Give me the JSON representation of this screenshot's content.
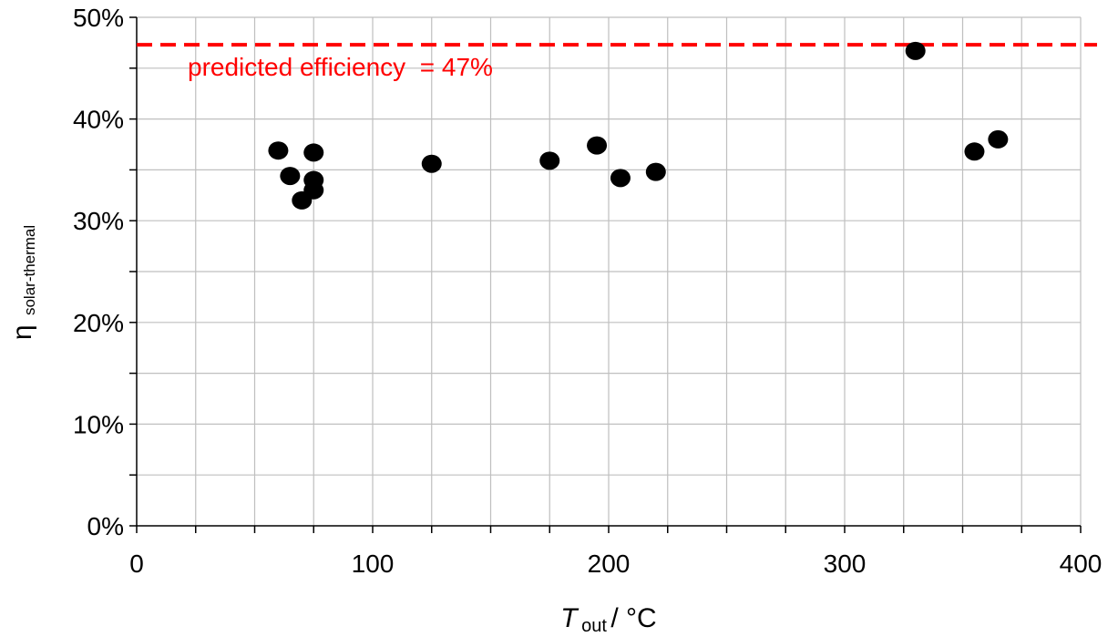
{
  "chart_data": {
    "type": "scatter",
    "title": "",
    "xlabel": {
      "main": "T",
      "subscript": "out",
      "unit": " / °C"
    },
    "ylabel": {
      "main": "η",
      "subscript": "solar-thermal"
    },
    "xlim": [
      0,
      400
    ],
    "ylim": [
      0,
      50
    ],
    "x_ticks": [
      0,
      100,
      200,
      300,
      400
    ],
    "x_gridlines": [
      0,
      25,
      50,
      75,
      100,
      125,
      150,
      175,
      200,
      225,
      250,
      275,
      300,
      325,
      350,
      375,
      400
    ],
    "y_ticks": [
      0,
      10,
      20,
      30,
      40,
      50
    ],
    "y_tick_labels": [
      "0%",
      "10%",
      "20%",
      "30%",
      "40%",
      "50%"
    ],
    "y_gridlines": [
      0,
      5,
      10,
      15,
      20,
      25,
      30,
      35,
      40,
      45,
      50
    ],
    "x_tick_labels": [
      "0",
      "100",
      "200",
      "300",
      "400"
    ],
    "grid": true,
    "points": [
      {
        "x": 60,
        "y": 36.9
      },
      {
        "x": 65,
        "y": 34.4
      },
      {
        "x": 70,
        "y": 32.0
      },
      {
        "x": 75,
        "y": 36.7
      },
      {
        "x": 75,
        "y": 34.0
      },
      {
        "x": 75,
        "y": 33.0
      },
      {
        "x": 125,
        "y": 35.6
      },
      {
        "x": 175,
        "y": 35.9
      },
      {
        "x": 195,
        "y": 37.4
      },
      {
        "x": 205,
        "y": 34.2
      },
      {
        "x": 220,
        "y": 34.8
      },
      {
        "x": 330,
        "y": 46.7
      },
      {
        "x": 355,
        "y": 36.8
      },
      {
        "x": 365,
        "y": 38.0
      }
    ],
    "reference_line": {
      "y": 47.3,
      "label": "predicted efficiency  = 47%",
      "color": "#ff0000",
      "style": "dashed"
    },
    "marker_color": "#000000",
    "grid_color": "#bfbfbf",
    "axis_color": "#000000",
    "text_color": "#000000"
  }
}
